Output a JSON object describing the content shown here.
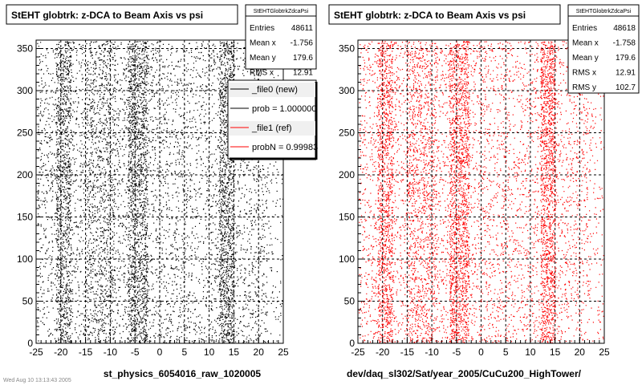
{
  "bottom_note": "Wed Aug 10 13:13:43 2005",
  "legend": [
    {
      "label": "_file0 (new)",
      "color": "#000000"
    },
    {
      "label": "prob = 1.000000",
      "color": "#000000"
    },
    {
      "label": "_file1 (ref)",
      "color": "#ff0000"
    },
    {
      "label": "probN = 0.99983",
      "color": "#ff0000"
    }
  ],
  "chart_data": [
    {
      "type": "scatter",
      "title": "StEHT globtrk: z-DCA to Beam Axis vs psi",
      "caption": "st_physics_6054016_raw_1020005",
      "color": "#000000",
      "xlim": [
        -25,
        25
      ],
      "ylim": [
        0,
        360
      ],
      "x_ticks": [
        "-25",
        "-20",
        "-15",
        "-10",
        "-5",
        "0",
        "5",
        "10",
        "15",
        "20",
        "25"
      ],
      "y_ticks": [
        "0",
        "50",
        "100",
        "150",
        "200",
        "250",
        "300",
        "350"
      ],
      "grid": true,
      "stats": {
        "name": "StEHTGlobtrkZdcaPsi",
        "rows": [
          {
            "label": "Entries",
            "value": "48611"
          },
          {
            "label": "Mean x",
            "value": "-1.756"
          },
          {
            "label": "Mean y",
            "value": "179.6"
          },
          {
            "label": "RMS x",
            "value": "12.91"
          }
        ]
      }
    },
    {
      "type": "scatter",
      "title": "StEHT globtrk: z-DCA to Beam Axis vs psi",
      "caption": "dev/daq_sl302/Sat/year_2005/CuCu200_HighTower/",
      "color": "#ff0000",
      "xlim": [
        -25,
        25
      ],
      "ylim": [
        0,
        360
      ],
      "x_ticks": [
        "-25",
        "-20",
        "-15",
        "-10",
        "-5",
        "0",
        "5",
        "10",
        "15",
        "20",
        "25"
      ],
      "y_ticks": [
        "0",
        "50",
        "100",
        "150",
        "200",
        "250",
        "300",
        "350"
      ],
      "grid": true,
      "stats": {
        "name": "StEHTGlobtrkZdcaPsi",
        "rows": [
          {
            "label": "Entries",
            "value": "48618"
          },
          {
            "label": "Mean x",
            "value": "-1.758"
          },
          {
            "label": "Mean y",
            "value": "179.6"
          },
          {
            "label": "RMS x",
            "value": "12.91"
          },
          {
            "label": "RMS y",
            "value": "102.7"
          }
        ]
      }
    }
  ]
}
